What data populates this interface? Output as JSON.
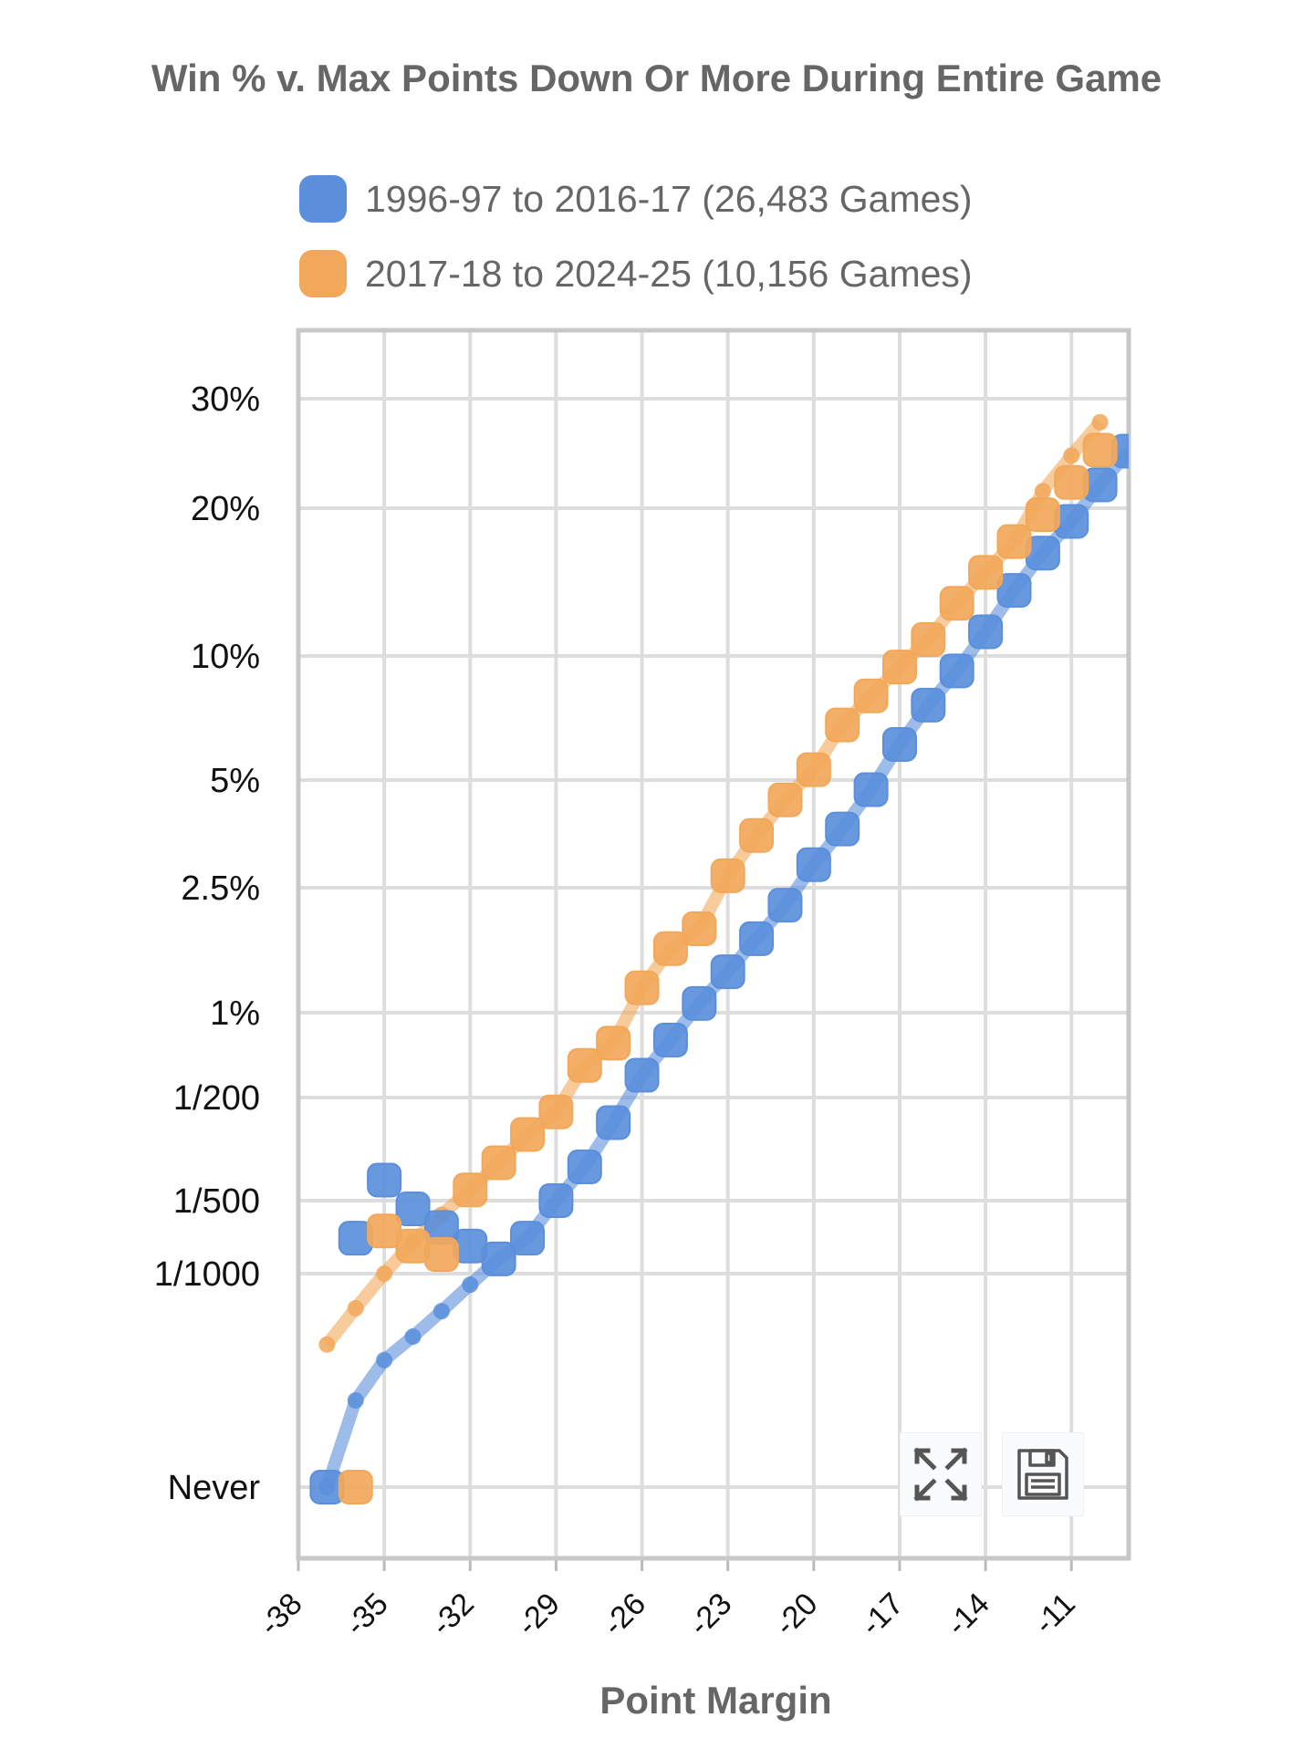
{
  "chart_data": {
    "type": "line",
    "title": "Win % v. Max Points Down Or More During Entire Game",
    "xlabel": "Point Margin",
    "ylabel": "",
    "y_scale": "log",
    "xlim": [
      -38,
      -9
    ],
    "x_ticks": [
      "-38",
      "-35",
      "-32",
      "-29",
      "-26",
      "-23",
      "-20",
      "-17",
      "-14",
      "-11"
    ],
    "y_ticks": [
      {
        "label": "30%",
        "value": 30
      },
      {
        "label": "20%",
        "value": 20
      },
      {
        "label": "10%",
        "value": 10
      },
      {
        "label": "5%",
        "value": 5
      },
      {
        "label": "2.5%",
        "value": 2.5
      },
      {
        "label": "1%",
        "value": 1
      },
      {
        "label": "1/200",
        "value": 0.5
      },
      {
        "label": "1/500",
        "value": 0.2
      },
      {
        "label": "1/1000",
        "value": 0.1
      },
      {
        "label": "Never",
        "value": 0
      }
    ],
    "grid": true,
    "legend_position": "top",
    "series": [
      {
        "name": "1996-97 to 2016-17 (26,483 Games)",
        "color": "#5b8fdb",
        "points": [
          {
            "x": -37,
            "y": 0
          },
          {
            "x": -36,
            "y": 0.14
          },
          {
            "x": -35,
            "y": 0.24
          },
          {
            "x": -34,
            "y": 0.185
          },
          {
            "x": -33,
            "y": 0.155
          },
          {
            "x": -32,
            "y": 0.13
          },
          {
            "x": -31,
            "y": 0.115
          },
          {
            "x": -30,
            "y": 0.14
          },
          {
            "x": -29,
            "y": 0.2
          },
          {
            "x": -28,
            "y": 0.27
          },
          {
            "x": -27,
            "y": 0.4
          },
          {
            "x": -26,
            "y": 0.6
          },
          {
            "x": -25,
            "y": 0.8
          },
          {
            "x": -24,
            "y": 1.07
          },
          {
            "x": -23,
            "y": 1.35
          },
          {
            "x": -22,
            "y": 1.72
          },
          {
            "x": -21,
            "y": 2.2
          },
          {
            "x": -20,
            "y": 2.9
          },
          {
            "x": -19,
            "y": 3.65
          },
          {
            "x": -18,
            "y": 4.7
          },
          {
            "x": -17,
            "y": 6.1
          },
          {
            "x": -16,
            "y": 7.6
          },
          {
            "x": -15,
            "y": 9.2
          },
          {
            "x": -14,
            "y": 11.2
          },
          {
            "x": -13,
            "y": 13.6
          },
          {
            "x": -12,
            "y": 16.2
          },
          {
            "x": -11,
            "y": 18.8
          },
          {
            "x": -10,
            "y": 21.8
          },
          {
            "x": -9,
            "y": 24.7
          }
        ],
        "trend": [
          {
            "x": -37,
            "y": 0
          },
          {
            "x": -36,
            "y": 0.03
          },
          {
            "x": -35,
            "y": 0.044
          },
          {
            "x": -34,
            "y": 0.055
          },
          {
            "x": -33,
            "y": 0.07
          },
          {
            "x": -32,
            "y": 0.09
          }
        ]
      },
      {
        "name": "2017-18 to 2024-25 (10,156 Games)",
        "color": "#f2a85a",
        "points": [
          {
            "x": -36,
            "y": 0
          },
          {
            "x": -35,
            "y": 0.15
          },
          {
            "x": -34,
            "y": 0.13
          },
          {
            "x": -33,
            "y": 0.12
          },
          {
            "x": -32,
            "y": 0.22
          },
          {
            "x": -31,
            "y": 0.28
          },
          {
            "x": -30,
            "y": 0.36
          },
          {
            "x": -29,
            "y": 0.44
          },
          {
            "x": -28,
            "y": 0.65
          },
          {
            "x": -27,
            "y": 0.78
          },
          {
            "x": -26,
            "y": 1.2
          },
          {
            "x": -25,
            "y": 1.6
          },
          {
            "x": -24,
            "y": 1.85
          },
          {
            "x": -23,
            "y": 2.7
          },
          {
            "x": -22,
            "y": 3.5
          },
          {
            "x": -21,
            "y": 4.4
          },
          {
            "x": -20,
            "y": 5.3
          },
          {
            "x": -19,
            "y": 6.8
          },
          {
            "x": -18,
            "y": 8.0
          },
          {
            "x": -17,
            "y": 9.4
          },
          {
            "x": -16,
            "y": 10.8
          },
          {
            "x": -15,
            "y": 12.8
          },
          {
            "x": -14,
            "y": 14.8
          },
          {
            "x": -13,
            "y": 17.1
          },
          {
            "x": -12,
            "y": 19.4
          },
          {
            "x": -11,
            "y": 22
          },
          {
            "x": -10,
            "y": 24.8
          }
        ],
        "trend": [
          {
            "x": -37,
            "y": 0.051
          },
          {
            "x": -36,
            "y": 0.072
          },
          {
            "x": -35,
            "y": 0.1
          },
          {
            "x": -34,
            "y": 0.135
          },
          {
            "x": -33,
            "y": 0.175
          },
          {
            "x": -12,
            "y": 21.3
          },
          {
            "x": -11,
            "y": 24.3
          },
          {
            "x": -10,
            "y": 27.5
          }
        ]
      }
    ]
  },
  "toolbar": {
    "expand_icon": "expand-icon",
    "save_icon": "floppy-disk-icon"
  }
}
